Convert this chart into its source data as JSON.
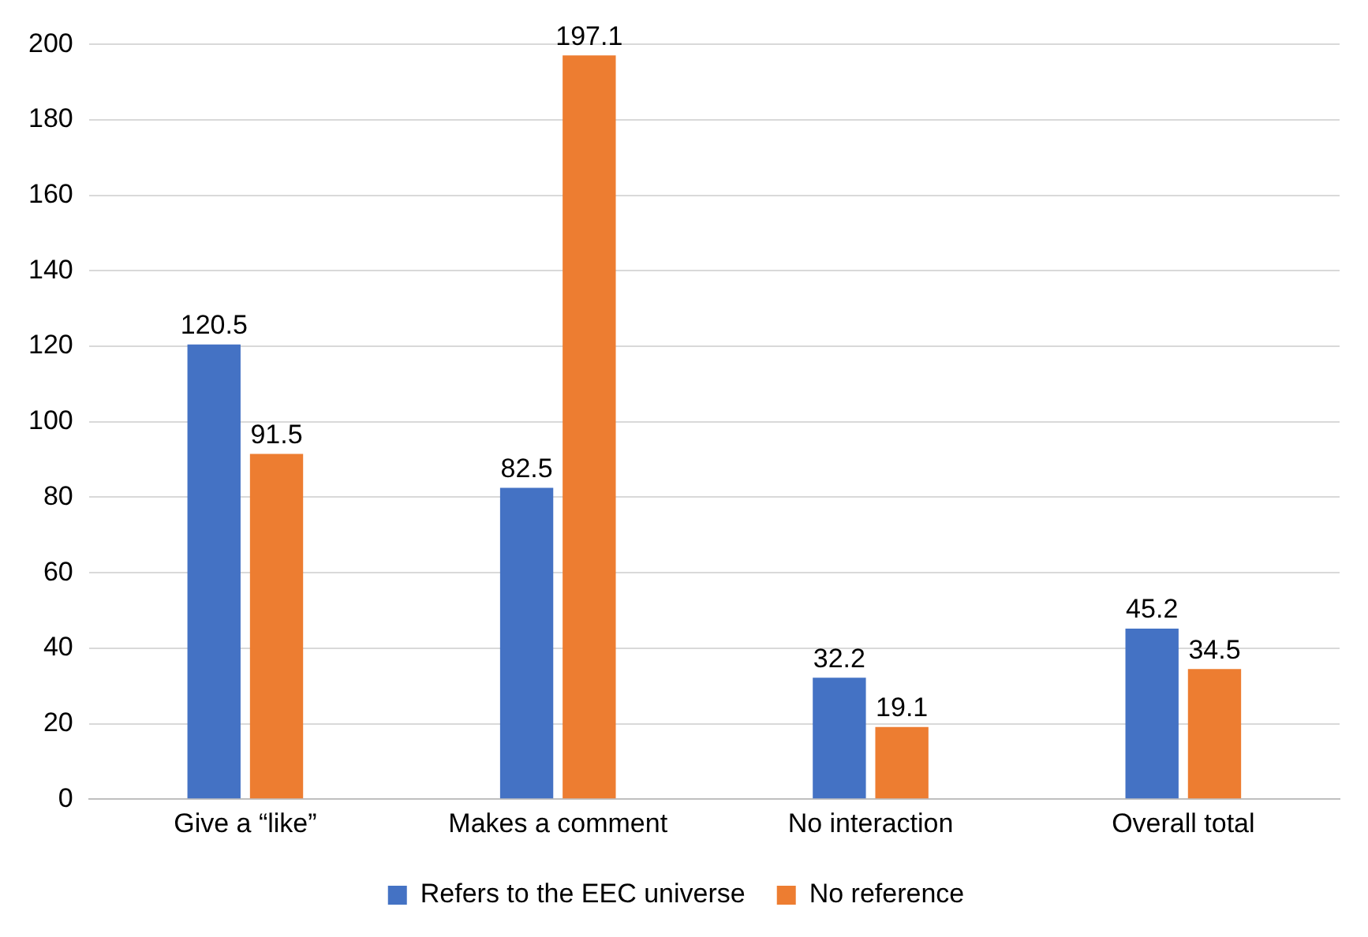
{
  "chart_data": {
    "type": "bar",
    "categories": [
      "Give a “like”",
      "Makes a comment",
      "No interaction",
      "Overall total"
    ],
    "series": [
      {
        "name": "Refers to the EEC universe",
        "color": "#4472c4",
        "values": [
          120.5,
          82.5,
          32.2,
          45.2
        ]
      },
      {
        "name": "No reference",
        "color": "#ed7d31",
        "values": [
          91.5,
          197.1,
          19.1,
          34.5
        ]
      }
    ],
    "ylim": [
      0,
      200
    ],
    "yticks": [
      0,
      20,
      40,
      60,
      80,
      100,
      120,
      140,
      160,
      180,
      200
    ],
    "grid": "y",
    "legend": "bottom",
    "data_labels": true
  }
}
